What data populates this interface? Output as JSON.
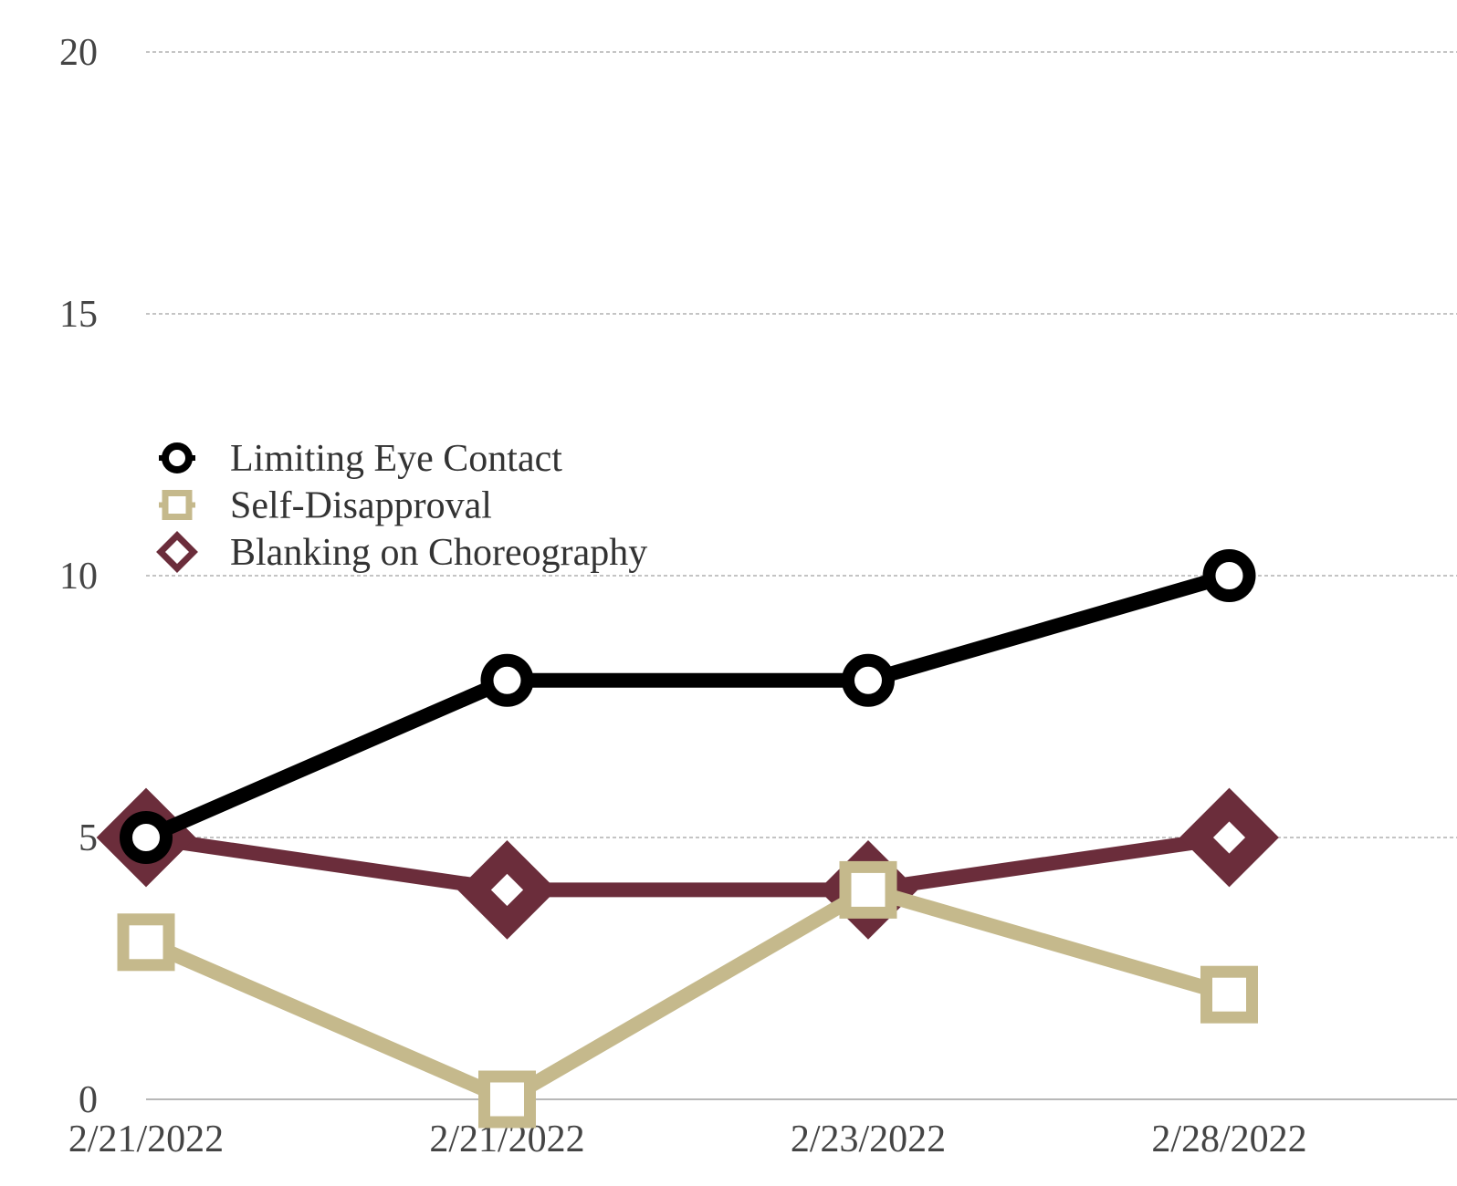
{
  "chart_data": {
    "type": "line",
    "title": "",
    "xlabel": "",
    "ylabel": "",
    "categories": [
      "2/21/2022",
      "2/21/2022",
      "2/23/2022",
      "2/28/2022"
    ],
    "ylim": [
      0,
      20
    ],
    "yticks": [
      "0",
      "5",
      "10",
      "15",
      "20"
    ],
    "grid": true,
    "legend_position": "left-middle",
    "series": [
      {
        "name": "Limiting Eye Contact",
        "values": [
          5,
          8,
          8,
          10
        ],
        "color": "#000000",
        "marker": "circle"
      },
      {
        "name": "Self-Disapproval",
        "values": [
          3,
          0,
          4,
          2
        ],
        "color": "#c5b98c",
        "marker": "square"
      },
      {
        "name": "Blanking on Choreography",
        "values": [
          5,
          4,
          4,
          5
        ],
        "color": "#6b2d3b",
        "marker": "diamond"
      }
    ]
  }
}
